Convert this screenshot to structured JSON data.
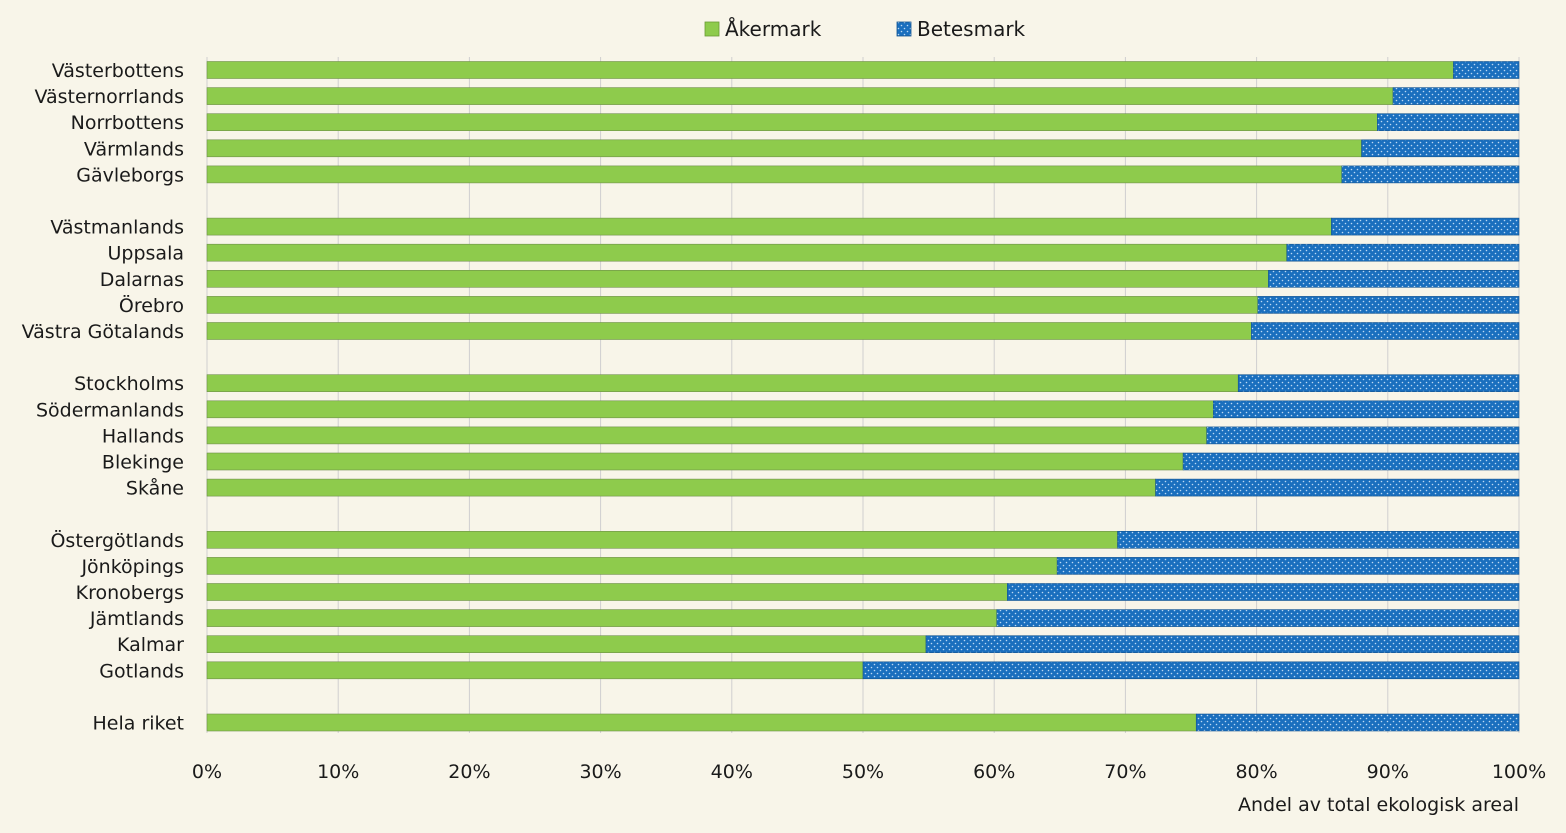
{
  "chart_data": {
    "type": "bar",
    "orientation": "horizontal",
    "stacked": true,
    "xlabel": "Andel av total ekologisk areal",
    "ylabel": "",
    "xlim": [
      0,
      100
    ],
    "x_ticks": [
      "0%",
      "10%",
      "20%",
      "30%",
      "40%",
      "50%",
      "60%",
      "70%",
      "80%",
      "90%",
      "100%"
    ],
    "grid": true,
    "legend_position": "top-center",
    "colors": {
      "akermark": "#8ecb4c",
      "betesmark": "#1a6fbe",
      "grid": "#cfcfcf",
      "background": "#f8f5e9"
    },
    "categories": [
      "Västerbottens",
      "Västernorrlands",
      "Norrbottens",
      "Värmlands",
      "Gävleborgs",
      "Västmanlands",
      "Uppsala",
      "Dalarnas",
      "Örebro",
      "Västra Götalands",
      "Stockholms",
      "Södermanlands",
      "Hallands",
      "Blekinge",
      "Skåne",
      "Östergötlands",
      "Jönköpings",
      "Kronobergs",
      "Jämtlands",
      "Kalmar",
      "Gotlands",
      "Hela riket"
    ],
    "groups": [
      5,
      5,
      5,
      6,
      1
    ],
    "series": [
      {
        "name": "Åkermark",
        "values": [
          95.0,
          90.4,
          89.2,
          88.0,
          86.5,
          85.7,
          82.3,
          80.9,
          80.1,
          79.6,
          78.6,
          76.7,
          76.2,
          74.4,
          72.3,
          69.4,
          64.8,
          61.0,
          60.2,
          54.8,
          50.0,
          75.4
        ]
      },
      {
        "name": "Betesmark",
        "values": [
          5.0,
          9.6,
          10.8,
          12.0,
          13.5,
          14.3,
          17.7,
          19.1,
          19.9,
          20.4,
          21.4,
          23.3,
          23.8,
          25.6,
          27.7,
          30.6,
          35.2,
          39.0,
          39.8,
          45.2,
          50.0,
          24.6
        ]
      }
    ]
  }
}
